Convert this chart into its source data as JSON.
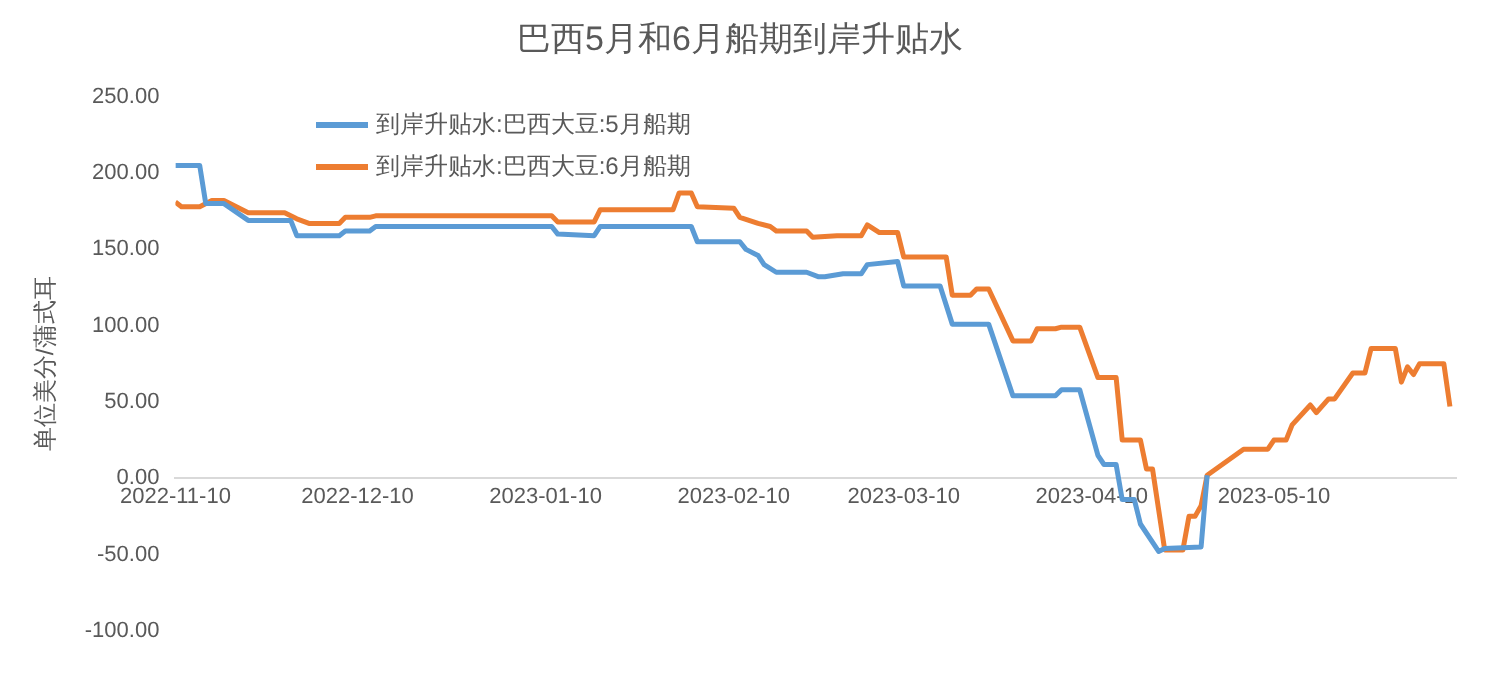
{
  "chart_data": {
    "type": "line",
    "title": "巴西5月和6月船期到岸升贴水",
    "ylabel": "单位美分/蒲式耳",
    "xlim": [
      "2022-11-10",
      "2023-06-09"
    ],
    "xticks": [
      "2022-11-10",
      "2022-12-10",
      "2023-01-10",
      "2023-02-10",
      "2023-03-10",
      "2023-04-10",
      "2023-05-10"
    ],
    "ylim": [
      -100,
      250
    ],
    "yticks": [
      {
        "value": -100,
        "label": "-100.00"
      },
      {
        "value": -50,
        "label": "-50.00"
      },
      {
        "value": 0,
        "label": "0.00"
      },
      {
        "value": 50,
        "label": "50.00"
      },
      {
        "value": 100,
        "label": "100.00"
      },
      {
        "value": 150,
        "label": "150.00"
      },
      {
        "value": 200,
        "label": "200.00"
      },
      {
        "value": 250,
        "label": "250.00"
      }
    ],
    "grid": false,
    "legend": "top left",
    "marker": "none",
    "line_style": "solid",
    "series": [
      {
        "name": "到岸升贴水:巴西大豆:5月船期",
        "color": "#5b9bd5",
        "x": [
          "2022-11-10",
          "2022-11-14",
          "2022-11-15",
          "2022-11-18",
          "2022-11-22",
          "2022-11-29",
          "2022-11-30",
          "2022-12-07",
          "2022-12-08",
          "2022-12-12",
          "2022-12-13",
          "2023-01-11",
          "2023-01-12",
          "2023-01-18",
          "2023-01-19",
          "2023-02-03",
          "2023-02-04",
          "2023-02-11",
          "2023-02-12",
          "2023-02-14",
          "2023-02-15",
          "2023-02-17",
          "2023-02-22",
          "2023-02-24",
          "2023-02-25",
          "2023-02-28",
          "2023-03-03",
          "2023-03-04",
          "2023-03-09",
          "2023-03-10",
          "2023-03-16",
          "2023-03-18",
          "2023-03-24",
          "2023-03-28",
          "2023-04-04",
          "2023-04-05",
          "2023-04-08",
          "2023-04-11",
          "2023-04-12",
          "2023-04-14",
          "2023-04-15",
          "2023-04-17",
          "2023-04-18",
          "2023-04-21",
          "2023-04-22",
          "2023-04-28",
          "2023-04-29"
        ],
        "values": [
          205,
          205,
          180,
          180,
          169,
          169,
          159,
          159,
          162,
          162,
          165,
          165,
          160,
          159,
          165,
          165,
          155,
          155,
          150,
          146,
          140,
          135,
          135,
          132,
          132,
          134,
          134,
          140,
          142,
          126,
          126,
          101,
          101,
          54,
          54,
          58,
          58,
          15,
          9,
          9,
          -14,
          -14,
          -30,
          -48,
          -46,
          -45,
          2
        ]
      },
      {
        "name": "到岸升贴水:巴西大豆:6月船期",
        "color": "#ed7d31",
        "x": [
          "2022-11-10",
          "2022-11-11",
          "2022-11-14",
          "2022-11-16",
          "2022-11-18",
          "2022-11-22",
          "2022-11-28",
          "2022-11-30",
          "2022-12-02",
          "2022-12-07",
          "2022-12-08",
          "2022-12-12",
          "2022-12-13",
          "2023-01-11",
          "2023-01-12",
          "2023-01-18",
          "2023-01-19",
          "2023-01-31",
          "2023-02-01",
          "2023-02-03",
          "2023-02-04",
          "2023-02-10",
          "2023-02-11",
          "2023-02-14",
          "2023-02-16",
          "2023-02-17",
          "2023-02-22",
          "2023-02-23",
          "2023-02-27",
          "2023-03-03",
          "2023-03-04",
          "2023-03-06",
          "2023-03-09",
          "2023-03-10",
          "2023-03-17",
          "2023-03-18",
          "2023-03-21",
          "2023-03-22",
          "2023-03-24",
          "2023-03-28",
          "2023-03-31",
          "2023-04-01",
          "2023-04-04",
          "2023-04-05",
          "2023-04-08",
          "2023-04-11",
          "2023-04-14",
          "2023-04-15",
          "2023-04-18",
          "2023-04-19",
          "2023-04-20",
          "2023-04-22",
          "2023-04-25",
          "2023-04-26",
          "2023-04-27",
          "2023-04-28",
          "2023-04-29",
          "2023-05-05",
          "2023-05-09",
          "2023-05-10",
          "2023-05-12",
          "2023-05-13",
          "2023-05-16",
          "2023-05-17",
          "2023-05-19",
          "2023-05-20",
          "2023-05-23",
          "2023-05-25",
          "2023-05-26",
          "2023-05-30",
          "2023-05-31",
          "2023-06-01",
          "2023-06-02",
          "2023-06-03",
          "2023-06-07",
          "2023-06-08"
        ],
        "values": [
          181,
          178,
          178,
          182,
          182,
          174,
          174,
          170,
          167,
          167,
          171,
          171,
          172,
          172,
          168,
          168,
          176,
          176,
          187,
          187,
          178,
          177,
          171,
          167,
          165,
          162,
          162,
          158,
          159,
          159,
          166,
          161,
          161,
          145,
          145,
          120,
          120,
          124,
          124,
          90,
          90,
          98,
          98,
          99,
          99,
          66,
          66,
          25,
          25,
          6,
          6,
          -47,
          -47,
          -25,
          -25,
          -18,
          2,
          19,
          19,
          25,
          25,
          35,
          48,
          43,
          52,
          52,
          69,
          69,
          85,
          85,
          63,
          73,
          68,
          75,
          75,
          47
        ]
      }
    ]
  }
}
